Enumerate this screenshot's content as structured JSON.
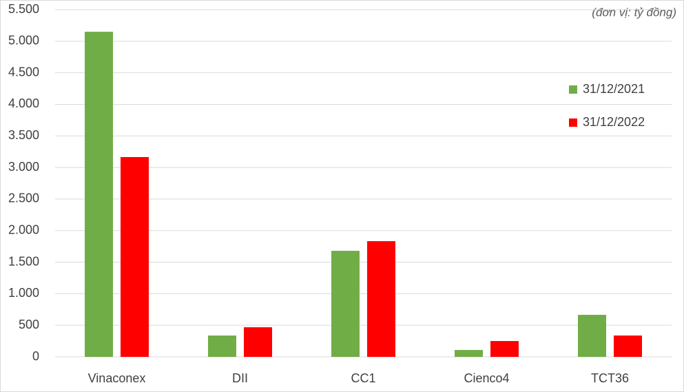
{
  "chart_data": {
    "type": "bar",
    "annotation": "(đơn vị: tỷ đồng)",
    "categories": [
      "Vinaconex",
      "DII",
      "CC1",
      "Cienco4",
      "TCT36"
    ],
    "series": [
      {
        "name": "31/12/2021",
        "color": "#70ad47",
        "values": [
          5150,
          338,
          1680,
          109,
          666
        ]
      },
      {
        "name": "31/12/2022",
        "color": "#ff0000",
        "values": [
          3165,
          469,
          1833,
          251,
          338
        ]
      }
    ],
    "ylim": [
      0,
      5500
    ],
    "yticks": [
      0,
      500,
      {
        "value": 1000,
        "label": "1.000"
      },
      {
        "value": 1500,
        "label": "1.500"
      },
      {
        "value": 2000,
        "label": "2.000"
      },
      {
        "value": 2500,
        "label": "2.500"
      },
      {
        "value": 3000,
        "label": "3.000"
      },
      {
        "value": 3500,
        "label": "3.500"
      },
      {
        "value": 4000,
        "label": "4.000"
      },
      {
        "value": 4500,
        "label": "4.500"
      },
      {
        "value": 5000,
        "label": "5.000"
      },
      {
        "value": 5500,
        "label": "5.500"
      }
    ],
    "grid": true,
    "legend": "right"
  }
}
